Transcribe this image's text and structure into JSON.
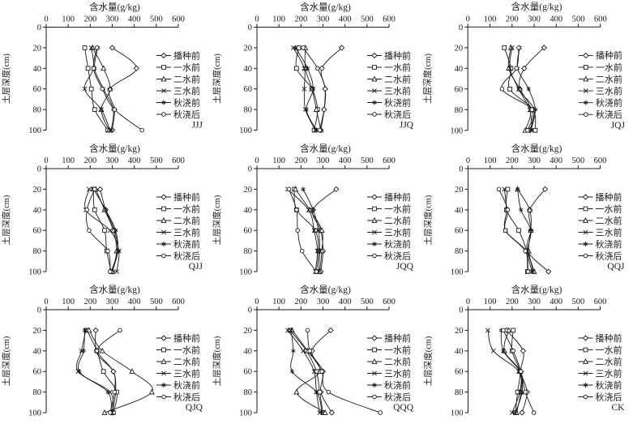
{
  "chart_data": {
    "type": "line",
    "xlabel": "含水量(g/kg)",
    "ylabel": "土层深度(cm)",
    "xlim": [
      0,
      600
    ],
    "xticks": [
      0,
      100,
      200,
      300,
      400,
      500,
      600
    ],
    "yticks": [
      0,
      20,
      40,
      60,
      80,
      100
    ],
    "depths": [
      20,
      40,
      60,
      80,
      100
    ],
    "grid": false,
    "legend_position": "right",
    "line_color": "#1a1a1a",
    "legend": [
      "播种前",
      "一水前",
      "二水前",
      "三水前",
      "秋浇前",
      "秋浇后"
    ],
    "legend_keys": [
      "before-sowing",
      "before-first-water",
      "before-second-water",
      "before-third-water",
      "before-autumn-irrigation",
      "after-autumn-irrigation"
    ],
    "markers": [
      "diamond",
      "square",
      "triangle",
      "x",
      "asterisk",
      "circle"
    ],
    "panels": [
      {
        "label": "JJJ",
        "series": [
          [
            300,
            410,
            290,
            310,
            300
          ],
          [
            175,
            190,
            205,
            220,
            280
          ],
          [
            210,
            260,
            290,
            250,
            285
          ],
          [
            205,
            215,
            175,
            250,
            290
          ],
          [
            235,
            220,
            260,
            305,
            295
          ],
          [
            230,
            215,
            255,
            310,
            435
          ]
        ]
      },
      {
        "label": "JJQ",
        "series": [
          [
            385,
            295,
            310,
            305,
            290
          ],
          [
            190,
            180,
            250,
            275,
            260
          ],
          [
            220,
            220,
            250,
            270,
            290
          ],
          [
            165,
            215,
            215,
            220,
            265
          ],
          [
            175,
            230,
            255,
            225,
            270
          ],
          [
            210,
            275,
            310,
            305,
            285
          ]
        ]
      },
      {
        "label": "JQJ",
        "series": [
          [
            345,
            255,
            235,
            300,
            280
          ],
          [
            165,
            195,
            190,
            295,
            305
          ],
          [
            195,
            185,
            235,
            285,
            260
          ],
          [
            200,
            190,
            230,
            280,
            290
          ],
          [
            235,
            225,
            275,
            305,
            285
          ],
          [
            230,
            220,
            155,
            290,
            270
          ]
        ]
      },
      {
        "label": "QJJ",
        "series": [
          [
            245,
            270,
            310,
            325,
            300
          ],
          [
            215,
            220,
            265,
            275,
            295
          ],
          [
            225,
            265,
            305,
            320,
            300
          ],
          [
            195,
            180,
            290,
            330,
            320
          ],
          [
            215,
            270,
            315,
            325,
            295
          ],
          [
            220,
            185,
            195,
            280,
            290
          ]
        ]
      },
      {
        "label": "JQQ",
        "series": [
          [
            360,
            255,
            290,
            300,
            290
          ],
          [
            170,
            180,
            265,
            280,
            270
          ],
          [
            175,
            240,
            295,
            295,
            285
          ],
          [
            140,
            235,
            260,
            275,
            265
          ],
          [
            210,
            255,
            280,
            285,
            280
          ],
          [
            145,
            180,
            185,
            205,
            270
          ]
        ]
      },
      {
        "label": "QQJ",
        "series": [
          [
            350,
            280,
            285,
            270,
            365
          ],
          [
            180,
            175,
            230,
            265,
            270
          ],
          [
            225,
            280,
            285,
            275,
            300
          ],
          [
            165,
            175,
            170,
            265,
            295
          ],
          [
            225,
            240,
            285,
            270,
            290
          ],
          [
            140,
            180,
            170,
            260,
            272
          ]
        ]
      },
      {
        "label": "QJQ",
        "series": [
          [
            225,
            230,
            305,
            315,
            300
          ],
          [
            185,
            230,
            260,
            320,
            305
          ],
          [
            195,
            255,
            390,
            480,
            265
          ],
          [
            180,
            160,
            145,
            290,
            300
          ],
          [
            175,
            170,
            150,
            280,
            295
          ],
          [
            335,
            230,
            305,
            310,
            290
          ]
        ]
      },
      {
        "label": "QQQ",
        "series": [
          [
            335,
            250,
            300,
            290,
            340
          ],
          [
            150,
            225,
            270,
            285,
            300
          ],
          [
            160,
            230,
            285,
            180,
            310
          ],
          [
            140,
            210,
            260,
            270,
            285
          ],
          [
            155,
            165,
            160,
            270,
            295
          ],
          [
            230,
            240,
            295,
            325,
            560
          ]
        ]
      },
      {
        "label": "CK",
        "series": [
          [
            175,
            250,
            240,
            268,
            245
          ],
          [
            205,
            200,
            235,
            225,
            215
          ],
          [
            185,
            165,
            238,
            240,
            220
          ],
          [
            90,
            115,
            230,
            235,
            200
          ],
          [
            150,
            160,
            235,
            245,
            215
          ],
          [
            160,
            205,
            240,
            260,
            299
          ]
        ]
      }
    ]
  }
}
